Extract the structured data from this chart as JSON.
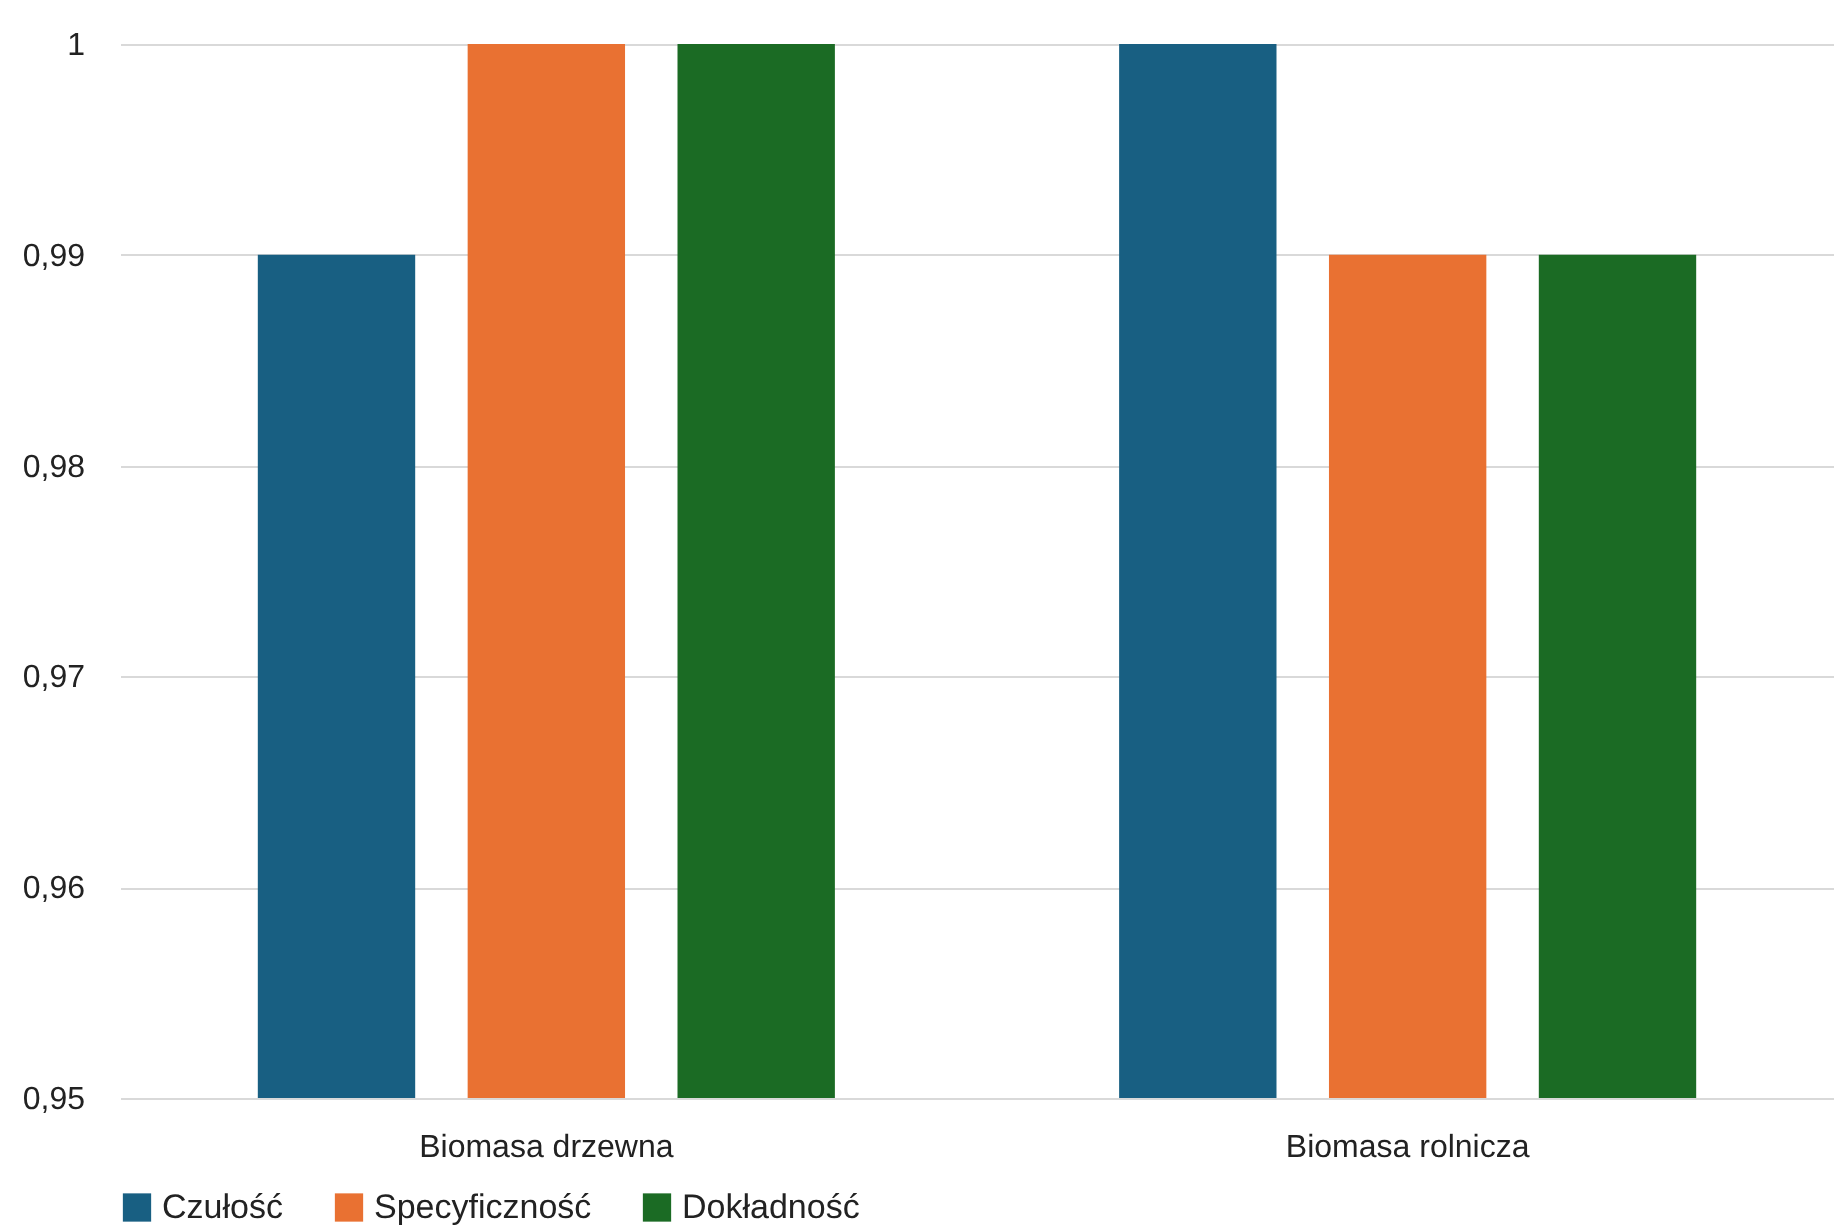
{
  "chart_data": {
    "type": "bar",
    "categories": [
      "Biomasa drzewna",
      "Biomasa rolnicza"
    ],
    "series": [
      {
        "name": "Czułość",
        "color": "#185f82",
        "values": [
          0.99,
          1
        ]
      },
      {
        "name": "Specyficzność",
        "color": "#e97132",
        "values": [
          1,
          0.99
        ]
      },
      {
        "name": "Dokładność",
        "color": "#1b6b24",
        "values": [
          1,
          0.99
        ]
      }
    ],
    "ylim": [
      0.95,
      1
    ],
    "yticks": [
      {
        "value": 0.95,
        "label": "0,95"
      },
      {
        "value": 0.96,
        "label": "0,96"
      },
      {
        "value": 0.97,
        "label": "0,97"
      },
      {
        "value": 0.98,
        "label": "0,98"
      },
      {
        "value": 0.99,
        "label": "0,99"
      },
      1
    ],
    "grid": "y",
    "legend": "bottom"
  }
}
